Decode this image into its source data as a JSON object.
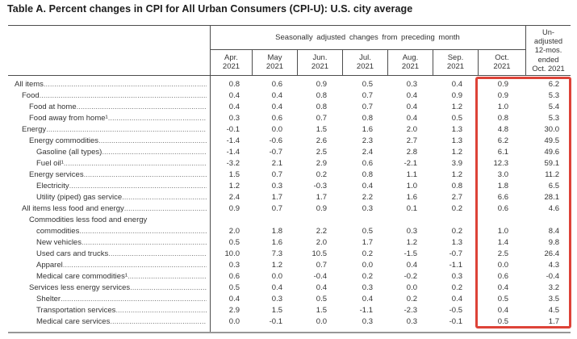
{
  "title": "Table A. Percent changes in CPI for All Urban Consumers (CPI-U): U.S. city average",
  "table": {
    "group_header": "Seasonally adjusted changes from preceding month",
    "columns": [
      "Apr.\n2021",
      "May\n2021",
      "Jun.\n2021",
      "Jul.\n2021",
      "Aug.\n2021",
      "Sep.\n2021",
      "Oct.\n2021"
    ],
    "unadjusted_header": "Un-\nadjusted\n12-mos.\nended\nOct. 2021",
    "rows": [
      {
        "label": "All items",
        "indent": 0,
        "values": [
          "0.8",
          "0.6",
          "0.9",
          "0.5",
          "0.3",
          "0.4",
          "0.9",
          "6.2"
        ]
      },
      {
        "label": "Food",
        "indent": 1,
        "values": [
          "0.4",
          "0.4",
          "0.8",
          "0.7",
          "0.4",
          "0.9",
          "0.9",
          "5.3"
        ]
      },
      {
        "label": "Food at home",
        "indent": 2,
        "values": [
          "0.4",
          "0.4",
          "0.8",
          "0.7",
          "0.4",
          "1.2",
          "1.0",
          "5.4"
        ]
      },
      {
        "label": "Food away from home¹",
        "indent": 2,
        "values": [
          "0.3",
          "0.6",
          "0.7",
          "0.8",
          "0.4",
          "0.5",
          "0.8",
          "5.3"
        ]
      },
      {
        "label": "Energy",
        "indent": 1,
        "values": [
          "-0.1",
          "0.0",
          "1.5",
          "1.6",
          "2.0",
          "1.3",
          "4.8",
          "30.0"
        ]
      },
      {
        "label": "Energy commodities",
        "indent": 2,
        "values": [
          "-1.4",
          "-0.6",
          "2.6",
          "2.3",
          "2.7",
          "1.3",
          "6.2",
          "49.5"
        ]
      },
      {
        "label": "Gasoline (all types)",
        "indent": 3,
        "values": [
          "-1.4",
          "-0.7",
          "2.5",
          "2.4",
          "2.8",
          "1.2",
          "6.1",
          "49.6"
        ]
      },
      {
        "label": "Fuel oil¹",
        "indent": 3,
        "values": [
          "-3.2",
          "2.1",
          "2.9",
          "0.6",
          "-2.1",
          "3.9",
          "12.3",
          "59.1"
        ]
      },
      {
        "label": "Energy services",
        "indent": 2,
        "values": [
          "1.5",
          "0.7",
          "0.2",
          "0.8",
          "1.1",
          "1.2",
          "3.0",
          "11.2"
        ]
      },
      {
        "label": "Electricity",
        "indent": 3,
        "values": [
          "1.2",
          "0.3",
          "-0.3",
          "0.4",
          "1.0",
          "0.8",
          "1.8",
          "6.5"
        ]
      },
      {
        "label": "Utility (piped) gas service",
        "indent": 3,
        "values": [
          "2.4",
          "1.7",
          "1.7",
          "2.2",
          "1.6",
          "2.7",
          "6.6",
          "28.1"
        ]
      },
      {
        "label": "All items less food and energy",
        "indent": 1,
        "values": [
          "0.9",
          "0.7",
          "0.9",
          "0.3",
          "0.1",
          "0.2",
          "0.6",
          "4.6"
        ]
      },
      {
        "label": "Commodities less food and energy",
        "label2": "commodities",
        "indent": 2,
        "indent2": 3,
        "values": [
          "2.0",
          "1.8",
          "2.2",
          "0.5",
          "0.3",
          "0.2",
          "1.0",
          "8.4"
        ]
      },
      {
        "label": "New vehicles",
        "indent": 3,
        "values": [
          "0.5",
          "1.6",
          "2.0",
          "1.7",
          "1.2",
          "1.3",
          "1.4",
          "9.8"
        ]
      },
      {
        "label": "Used cars and trucks",
        "indent": 3,
        "values": [
          "10.0",
          "7.3",
          "10.5",
          "0.2",
          "-1.5",
          "-0.7",
          "2.5",
          "26.4"
        ]
      },
      {
        "label": "Apparel",
        "indent": 3,
        "values": [
          "0.3",
          "1.2",
          "0.7",
          "0.0",
          "0.4",
          "-1.1",
          "0.0",
          "4.3"
        ]
      },
      {
        "label": "Medical care commodities¹",
        "indent": 3,
        "values": [
          "0.6",
          "0.0",
          "-0.4",
          "0.2",
          "-0.2",
          "0.3",
          "0.6",
          "-0.4"
        ]
      },
      {
        "label": "Services less energy services",
        "indent": 2,
        "values": [
          "0.5",
          "0.4",
          "0.4",
          "0.3",
          "0.0",
          "0.2",
          "0.4",
          "3.2"
        ]
      },
      {
        "label": "Shelter",
        "indent": 3,
        "values": [
          "0.4",
          "0.3",
          "0.5",
          "0.4",
          "0.2",
          "0.4",
          "0.5",
          "3.5"
        ]
      },
      {
        "label": "Transportation services",
        "indent": 3,
        "values": [
          "2.9",
          "1.5",
          "1.5",
          "-1.1",
          "-2.3",
          "-0.5",
          "0.4",
          "4.5"
        ]
      },
      {
        "label": "Medical care services",
        "indent": 3,
        "values": [
          "0.0",
          "-0.1",
          "0.0",
          "0.3",
          "0.3",
          "-0.1",
          "0.5",
          "1.7"
        ]
      }
    ]
  },
  "highlight": {
    "color": "#dd4338",
    "covers": "Oct. 2021 and Unadjusted 12-mos. ended Oct. 2021 columns"
  }
}
